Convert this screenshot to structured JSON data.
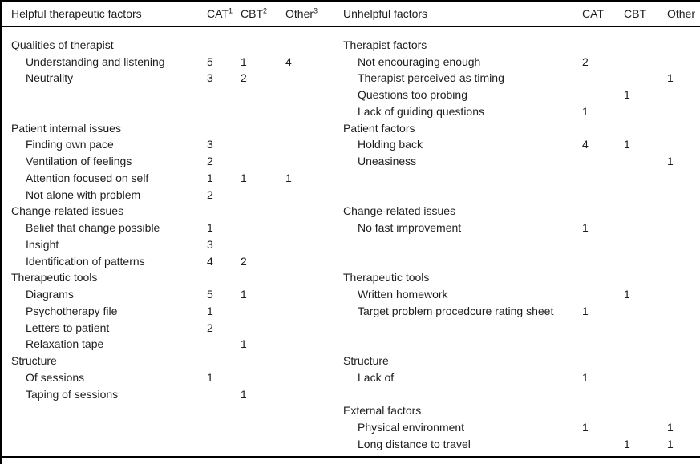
{
  "page": {
    "background_color": "#ffffff",
    "text_color": "#1e1e1e",
    "rule_color": "#000000"
  },
  "left_table": {
    "title": "Helpful therapeutic factors",
    "columns": [
      {
        "label": "CAT",
        "sup": "1"
      },
      {
        "label": "CBT",
        "sup": "2"
      },
      {
        "label": "Other",
        "sup": "3"
      }
    ],
    "rows": [
      {
        "type": "section",
        "label": "Qualities of therapist",
        "cat": "",
        "cbt": "",
        "other": ""
      },
      {
        "type": "item",
        "label": "Understanding and listening",
        "cat": "5",
        "cbt": "1",
        "other": "4"
      },
      {
        "type": "item",
        "label": "Neutrality",
        "cat": "3",
        "cbt": "2",
        "other": ""
      },
      {
        "type": "blank",
        "label": "",
        "cat": "",
        "cbt": "",
        "other": ""
      },
      {
        "type": "blank",
        "label": "",
        "cat": "",
        "cbt": "",
        "other": ""
      },
      {
        "type": "section",
        "label": "Patient internal issues",
        "cat": "",
        "cbt": "",
        "other": ""
      },
      {
        "type": "item",
        "label": "Finding own pace",
        "cat": "3",
        "cbt": "",
        "other": ""
      },
      {
        "type": "item",
        "label": "Ventilation of feelings",
        "cat": "2",
        "cbt": "",
        "other": ""
      },
      {
        "type": "item",
        "label": "Attention focused on self",
        "cat": "1",
        "cbt": "1",
        "other": "1"
      },
      {
        "type": "item",
        "label": "Not alone with problem",
        "cat": "2",
        "cbt": "",
        "other": ""
      },
      {
        "type": "section",
        "label": "Change-related issues",
        "cat": "",
        "cbt": "",
        "other": ""
      },
      {
        "type": "item",
        "label": "Belief that change possible",
        "cat": "1",
        "cbt": "",
        "other": ""
      },
      {
        "type": "item",
        "label": "Insight",
        "cat": "3",
        "cbt": "",
        "other": ""
      },
      {
        "type": "item",
        "label": "Identification of patterns",
        "cat": "4",
        "cbt": "2",
        "other": ""
      },
      {
        "type": "section",
        "label": "Therapeutic tools",
        "cat": "",
        "cbt": "",
        "other": ""
      },
      {
        "type": "item",
        "label": "Diagrams",
        "cat": "5",
        "cbt": "1",
        "other": ""
      },
      {
        "type": "item",
        "label": "Psychotherapy file",
        "cat": "1",
        "cbt": "",
        "other": ""
      },
      {
        "type": "item",
        "label": "Letters to patient",
        "cat": "2",
        "cbt": "",
        "other": ""
      },
      {
        "type": "item",
        "label": "Relaxation tape",
        "cat": "",
        "cbt": "1",
        "other": ""
      },
      {
        "type": "section",
        "label": "Structure",
        "cat": "",
        "cbt": "",
        "other": ""
      },
      {
        "type": "item",
        "label": "Of sessions",
        "cat": "1",
        "cbt": "",
        "other": ""
      },
      {
        "type": "item",
        "label": "Taping of sessions",
        "cat": "",
        "cbt": "1",
        "other": ""
      },
      {
        "type": "blank",
        "label": "",
        "cat": "",
        "cbt": "",
        "other": ""
      },
      {
        "type": "blank",
        "label": "",
        "cat": "",
        "cbt": "",
        "other": ""
      },
      {
        "type": "blank",
        "label": "",
        "cat": "",
        "cbt": "",
        "other": ""
      }
    ]
  },
  "right_table": {
    "title": "Unhelpful factors",
    "columns": [
      {
        "label": "CAT",
        "sup": ""
      },
      {
        "label": "CBT",
        "sup": ""
      },
      {
        "label": "Other",
        "sup": ""
      }
    ],
    "rows": [
      {
        "type": "section",
        "label": "Therapist factors",
        "cat": "",
        "cbt": "",
        "other": ""
      },
      {
        "type": "item",
        "label": "Not encouraging enough",
        "cat": "2",
        "cbt": "",
        "other": ""
      },
      {
        "type": "item",
        "label": "Therapist perceived as timing",
        "cat": "",
        "cbt": "",
        "other": "1"
      },
      {
        "type": "item",
        "label": "Questions too probing",
        "cat": "",
        "cbt": "1",
        "other": ""
      },
      {
        "type": "item",
        "label": "Lack of guiding questions",
        "cat": "1",
        "cbt": "",
        "other": ""
      },
      {
        "type": "section",
        "label": "Patient factors",
        "cat": "",
        "cbt": "",
        "other": ""
      },
      {
        "type": "item",
        "label": "Holding back",
        "cat": "4",
        "cbt": "1",
        "other": ""
      },
      {
        "type": "item",
        "label": "Uneasiness",
        "cat": "",
        "cbt": "",
        "other": "1"
      },
      {
        "type": "blank",
        "label": "",
        "cat": "",
        "cbt": "",
        "other": ""
      },
      {
        "type": "blank",
        "label": "",
        "cat": "",
        "cbt": "",
        "other": ""
      },
      {
        "type": "section",
        "label": "Change-related issues",
        "cat": "",
        "cbt": "",
        "other": ""
      },
      {
        "type": "item",
        "label": "No fast improvement",
        "cat": "1",
        "cbt": "",
        "other": ""
      },
      {
        "type": "blank",
        "label": "",
        "cat": "",
        "cbt": "",
        "other": ""
      },
      {
        "type": "blank",
        "label": "",
        "cat": "",
        "cbt": "",
        "other": ""
      },
      {
        "type": "section",
        "label": "Therapeutic tools",
        "cat": "",
        "cbt": "",
        "other": ""
      },
      {
        "type": "item",
        "label": "Written homework",
        "cat": "",
        "cbt": "1",
        "other": ""
      },
      {
        "type": "item",
        "label": "Target problem procedcure rating sheet",
        "cat": "1",
        "cbt": "",
        "other": ""
      },
      {
        "type": "blank",
        "label": "",
        "cat": "",
        "cbt": "",
        "other": ""
      },
      {
        "type": "blank",
        "label": "",
        "cat": "",
        "cbt": "",
        "other": ""
      },
      {
        "type": "section",
        "label": "Structure",
        "cat": "",
        "cbt": "",
        "other": ""
      },
      {
        "type": "item",
        "label": "Lack of",
        "cat": "1",
        "cbt": "",
        "other": ""
      },
      {
        "type": "blank",
        "label": "",
        "cat": "",
        "cbt": "",
        "other": ""
      },
      {
        "type": "section",
        "label": "External factors",
        "cat": "",
        "cbt": "",
        "other": ""
      },
      {
        "type": "item",
        "label": "Physical environment",
        "cat": "1",
        "cbt": "",
        "other": "1"
      },
      {
        "type": "item",
        "label": "Long distance to travel",
        "cat": "",
        "cbt": "1",
        "other": "1"
      }
    ]
  }
}
